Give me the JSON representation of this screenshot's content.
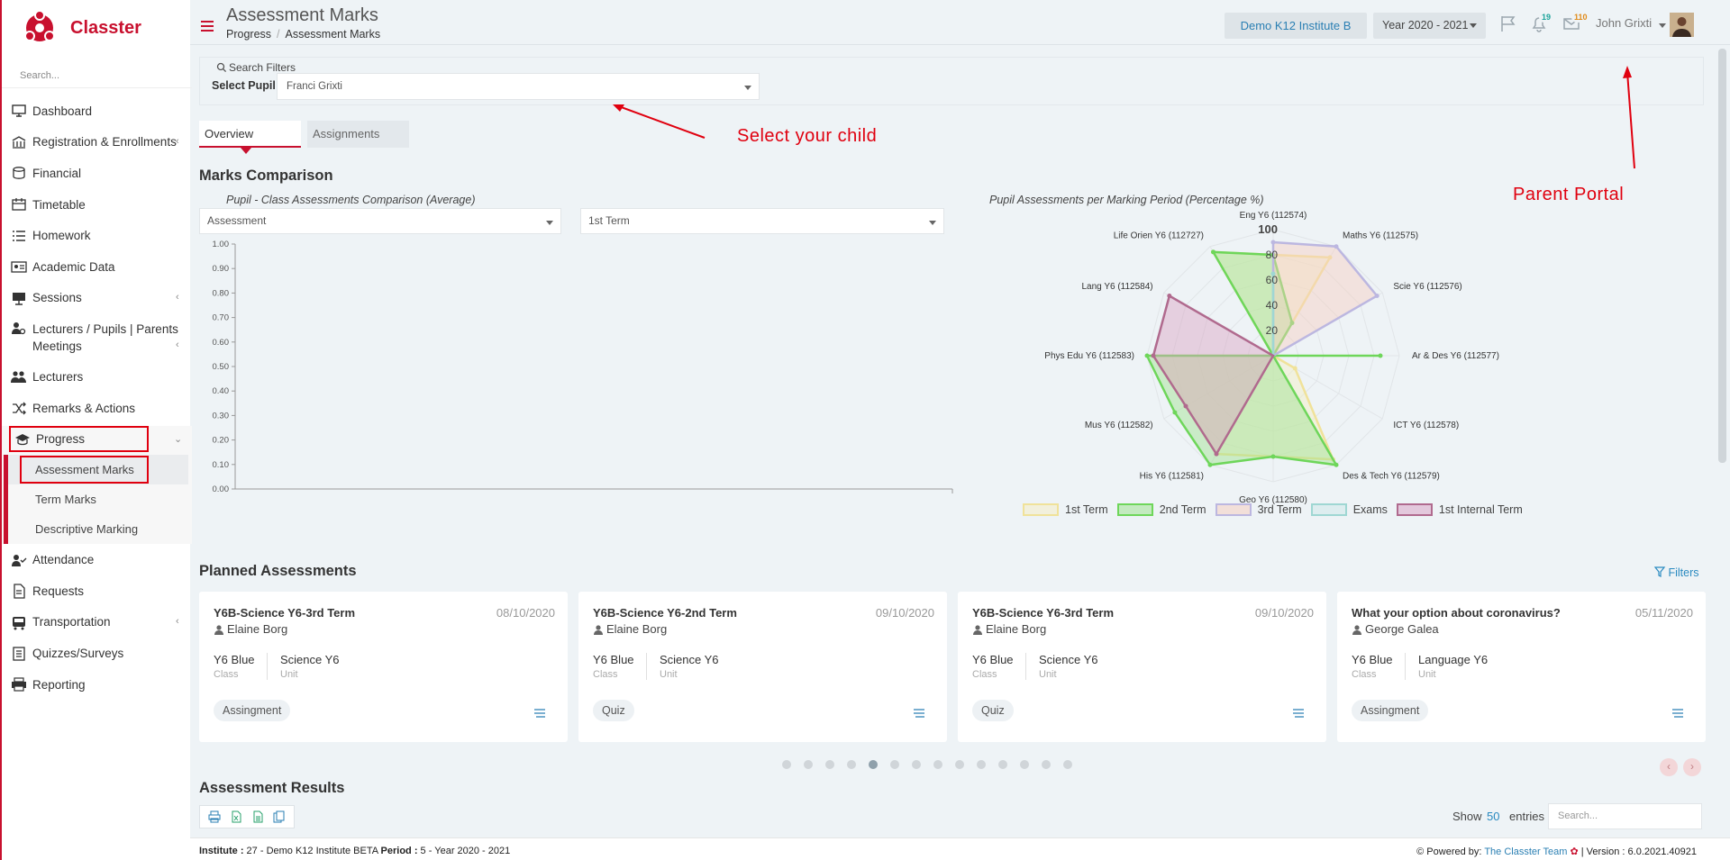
{
  "app": {
    "logo_text": "Classter",
    "search_placeholder": "Search..."
  },
  "sidebar": {
    "items": [
      {
        "label": "Dashboard",
        "icon": "monitor-icon",
        "chevron": false
      },
      {
        "label": "Registration & Enrollments",
        "icon": "building-icon",
        "chevron": true
      },
      {
        "label": "Financial",
        "icon": "coins-icon",
        "chevron": false
      },
      {
        "label": "Timetable",
        "icon": "calendar-icon",
        "chevron": false
      },
      {
        "label": "Homework",
        "icon": "list-icon",
        "chevron": false
      },
      {
        "label": "Academic Data",
        "icon": "id-card-icon",
        "chevron": false
      },
      {
        "label": "Sessions",
        "icon": "presentation-icon",
        "chevron": true
      },
      {
        "label": "Lecturers / Pupils | Parents Meetings",
        "icon": "users-gear-icon",
        "chevron": true
      },
      {
        "label": "Lecturers",
        "icon": "users-icon",
        "chevron": false
      },
      {
        "label": "Remarks & Actions",
        "icon": "shuffle-icon",
        "chevron": false
      }
    ],
    "progress": {
      "label": "Progress",
      "icon": "graduation-cap-icon",
      "sub": [
        "Assessment Marks",
        "Term Marks",
        "Descriptive Marking"
      ]
    },
    "items_after": [
      {
        "label": "Attendance",
        "icon": "user-check-icon",
        "chevron": false
      },
      {
        "label": "Requests",
        "icon": "document-icon",
        "chevron": false
      },
      {
        "label": "Transportation",
        "icon": "bus-icon",
        "chevron": true
      },
      {
        "label": "Quizzes/Surveys",
        "icon": "clipboard-icon",
        "chevron": false
      },
      {
        "label": "Reporting",
        "icon": "printer-icon",
        "chevron": false
      }
    ]
  },
  "header": {
    "title": "Assessment Marks",
    "breadcrumb": [
      "Progress",
      "Assessment Marks"
    ],
    "institute": "Demo K12 Institute B",
    "year": "Year 2020 - 2021",
    "notifications_count": "19",
    "messages_count": "110",
    "user_name": "John Grixti"
  },
  "filters": {
    "title": "Search Filters",
    "pupil_label": "Select Pupil",
    "pupil_value": "Franci Grixti"
  },
  "annotations": {
    "select_child": "Select your child",
    "parent_portal": "Parent Portal"
  },
  "tabs": [
    "Overview",
    "Assignments"
  ],
  "marks_comparison": {
    "heading": "Marks Comparison",
    "left_title": "Pupil - Class Assessments Comparison (Average)",
    "assessment_select": "Assessment",
    "term_select": "1st Term",
    "right_title": "Pupil Assessments per Marking Period (Percentage %)"
  },
  "chart_data": [
    {
      "type": "bar",
      "title": "Pupil - Class Assessments Comparison (Average)",
      "categories": [],
      "values": [],
      "ylim": [
        0,
        1
      ],
      "yticks": [
        "1.00",
        "0.90",
        "0.80",
        "0.70",
        "0.60",
        "0.50",
        "0.40",
        "0.30",
        "0.20",
        "0.10",
        "0.00"
      ],
      "grid": false
    },
    {
      "type": "radar",
      "title": "Pupil Assessments per Marking Period (Percentage %)",
      "categories": [
        "Eng Y6 (112574)",
        "Maths Y6 (112575)",
        "Scie Y6 (112576)",
        "Ar & Des Y6 (112577)",
        "ICT Y6 (112578)",
        "Des & Tech Y6 (112579)",
        "Geo Y6 (112580)",
        "His Y6 (112581)",
        "Mus Y6 (112582)",
        "Phys Edu Y6 (112583)",
        "Lang Y6 (112584)",
        "Life Orien Y6 (112727)"
      ],
      "rlim": [
        0,
        100
      ],
      "rticks": [
        "20",
        "40",
        "60",
        "80",
        "100"
      ],
      "legend_position": "bottom",
      "series": [
        {
          "name": "1st Term",
          "color": "#f0e29a",
          "fill": "#f5efc4",
          "values": [
            80,
            90,
            0,
            0,
            20,
            95,
            80,
            90,
            80,
            95,
            0,
            95
          ]
        },
        {
          "name": "2nd Term",
          "color": "#6ed65a",
          "fill": "#9de38f",
          "values": [
            80,
            30,
            0,
            85,
            0,
            100,
            80,
            100,
            90,
            100,
            0,
            95
          ]
        },
        {
          "name": "3rd Term",
          "color": "#bcb7e0",
          "fill": "#f6cfc0",
          "values": [
            90,
            100,
            95,
            0,
            0,
            0,
            0,
            0,
            0,
            0,
            0,
            0
          ]
        },
        {
          "name": "Exams",
          "color": "#9fd7d3",
          "fill": "#cfe9e9",
          "values": [
            65,
            0,
            0,
            0,
            0,
            0,
            0,
            0,
            0,
            0,
            0,
            0
          ]
        },
        {
          "name": "1st Internal Term",
          "color": "#b06a8e",
          "fill": "#d9a3c4",
          "values": [
            0,
            0,
            0,
            0,
            0,
            0,
            0,
            90,
            80,
            95,
            95,
            0
          ]
        }
      ]
    }
  ],
  "planned": {
    "heading": "Planned Assessments",
    "filters_label": "Filters",
    "class_caption": "Class",
    "unit_caption": "Unit",
    "cards": [
      {
        "title": "Y6B-Science Y6-3rd Term",
        "date": "08/10/2020",
        "person": "Elaine Borg",
        "class": "Y6 Blue",
        "unit": "Science Y6",
        "tag": "Assingment"
      },
      {
        "title": "Y6B-Science Y6-2nd Term",
        "date": "09/10/2020",
        "person": "Elaine Borg",
        "class": "Y6 Blue",
        "unit": "Science Y6",
        "tag": "Quiz"
      },
      {
        "title": "Y6B-Science Y6-3rd Term",
        "date": "09/10/2020",
        "person": "Elaine Borg",
        "class": "Y6 Blue",
        "unit": "Science Y6",
        "tag": "Quiz"
      },
      {
        "title": "What your option about coronavirus?",
        "date": "05/11/2020",
        "person": "George Galea",
        "class": "Y6 Blue",
        "unit": "Language Y6",
        "tag": "Assingment"
      }
    ],
    "page_count": 14,
    "active_page": 5
  },
  "results": {
    "heading": "Assessment Results",
    "show_label": "Show",
    "show_value": "50",
    "entries_label": "entries",
    "search_placeholder": "Search..."
  },
  "footer": {
    "institute_label": "Institute :",
    "institute_value": " 27 - Demo K12 Institute BETA ",
    "period_label": "Period :",
    "period_value": " 5 - Year 2020 - 2021",
    "powered_label": "Powered by:",
    "powered_link": "The Classter Team",
    "version": " | Version : 6.0.2021.40921"
  }
}
